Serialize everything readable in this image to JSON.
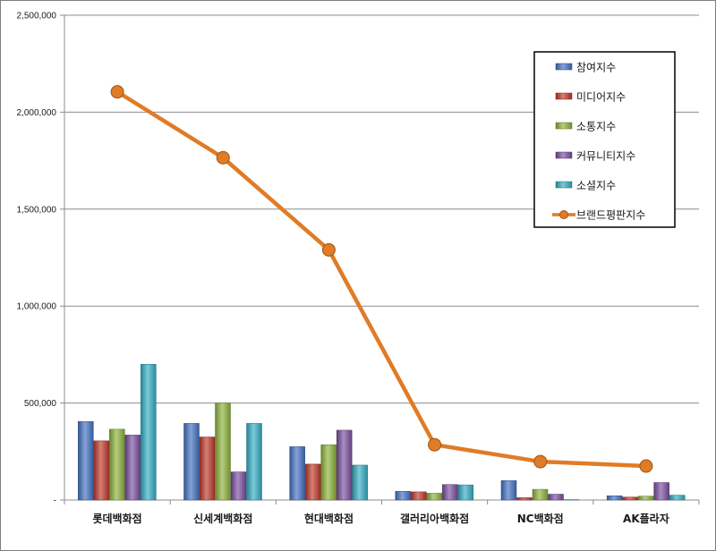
{
  "chart_data": {
    "type": "bar",
    "categories": [
      "롯데백화점",
      "신세계백화점",
      "현대백화점",
      "갤러리아백화점",
      "NC백화점",
      "AK플라자"
    ],
    "ylim": [
      0,
      2500000
    ],
    "y_ticks": [
      "-",
      "500,000",
      "1,000,000",
      "1,500,000",
      "2,000,000",
      "2,500,000"
    ],
    "grid": true,
    "legend_position": "top-right",
    "series": [
      {
        "name": "참여지수",
        "kind": "bar",
        "color": "#4472c4",
        "values": [
          405000,
          395000,
          275000,
          45000,
          100000,
          22000
        ]
      },
      {
        "name": "미디어지수",
        "kind": "bar",
        "color": "#c0392b",
        "values": [
          305000,
          325000,
          185000,
          42000,
          12000,
          15000
        ]
      },
      {
        "name": "소통지수",
        "kind": "bar",
        "color": "#8db33a",
        "values": [
          365000,
          500000,
          285000,
          35000,
          55000,
          20000
        ]
      },
      {
        "name": "커뮤니티지수",
        "kind": "bar",
        "color": "#7b4fa0",
        "values": [
          335000,
          145000,
          360000,
          80000,
          30000,
          90000
        ]
      },
      {
        "name": "소셜지수",
        "kind": "bar",
        "color": "#34aec4",
        "values": [
          700000,
          395000,
          180000,
          78000,
          2000,
          25000
        ]
      },
      {
        "name": "브랜드평판지수",
        "kind": "line",
        "color": "#e07b26",
        "values": [
          2105000,
          1765000,
          1290000,
          285000,
          198000,
          175000
        ]
      }
    ]
  }
}
